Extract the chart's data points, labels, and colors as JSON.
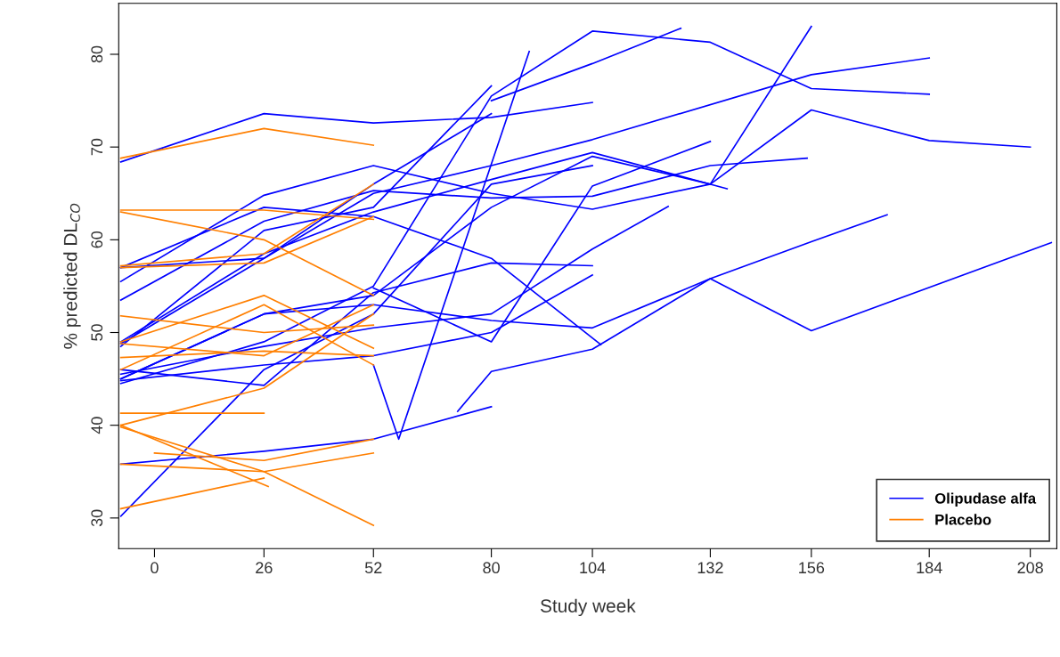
{
  "chart_data": {
    "type": "line",
    "xlabel": "Study week",
    "ylabel": "% predicted DL$_{CO}$",
    "xlim": [
      -8.5,
      214.3
    ],
    "ylim": [
      26.7,
      85.5
    ],
    "xticks": [
      0,
      26,
      52,
      80,
      104,
      132,
      156,
      184,
      208
    ],
    "yticks": [
      30,
      40,
      50,
      60,
      70,
      80
    ],
    "grid": false,
    "legend": "bottom right",
    "marker": "none",
    "line_style": "solid",
    "series": [
      {
        "name": "Olipudase alfa",
        "color": "#0000ff",
        "x": [
          -8,
          26,
          52,
          80,
          104
        ],
        "values": [
          68.4,
          73.6,
          72.6,
          73.2,
          74.8
        ]
      },
      {
        "color": "#0000ff",
        "x": [
          -8,
          26,
          52,
          80,
          104
        ],
        "values": [
          30.2,
          46,
          52,
          66,
          68
        ]
      },
      {
        "color": "#0000ff",
        "x": [
          -8,
          26,
          52,
          80,
          104,
          132,
          156,
          184,
          208
        ],
        "values": [
          55.5,
          64.8,
          68,
          65,
          63.3,
          66,
          74,
          70.7,
          70
        ]
      },
      {
        "color": "#0000ff",
        "x": [
          -8,
          26,
          52,
          80,
          104,
          132,
          156
        ],
        "values": [
          45,
          52,
          54,
          63.5,
          69,
          66,
          83
        ]
      },
      {
        "color": "#0000ff",
        "x": [
          -8,
          26,
          52,
          80,
          104,
          132,
          156,
          184
        ],
        "values": [
          44.5,
          49,
          55,
          75.5,
          82.5,
          81.3,
          76.3,
          75.7
        ]
      },
      {
        "color": "#0000ff",
        "x": [
          80,
          104,
          125
        ],
        "values": [
          75,
          79,
          82.8
        ]
      },
      {
        "color": "#0000ff",
        "x": [
          -8,
          26,
          52,
          80
        ],
        "values": [
          35.8,
          37.2,
          38.5,
          42
        ]
      },
      {
        "color": "#0000ff",
        "x": [
          -8,
          26,
          52,
          80,
          104
        ],
        "values": [
          46,
          44.3,
          54.3,
          57.5,
          57.2
        ]
      },
      {
        "color": "#0000ff",
        "x": [
          72,
          80,
          104,
          132,
          156,
          213
        ],
        "values": [
          41.5,
          45.8,
          48.2,
          55.8,
          50.2,
          59.7
        ]
      },
      {
        "color": "#0000ff",
        "x": [
          -8,
          26,
          52,
          80,
          104,
          132,
          155
        ],
        "values": [
          53.5,
          62,
          65.3,
          64.5,
          64.7,
          68,
          68.8
        ]
      },
      {
        "color": "#0000ff",
        "x": [
          -8,
          26,
          52,
          80,
          104,
          156,
          184
        ],
        "values": [
          57,
          58,
          65,
          68,
          70.8,
          77.8,
          79.6
        ]
      },
      {
        "color": "#0000ff",
        "x": [
          52,
          58,
          89
        ],
        "values": [
          46.5,
          38.5,
          80.3
        ]
      },
      {
        "color": "#0000ff",
        "x": [
          -8,
          26,
          52,
          80
        ],
        "values": [
          48.8,
          58,
          66,
          73.6
        ]
      },
      {
        "color": "#0000ff",
        "x": [
          -8,
          26,
          52,
          80
        ],
        "values": [
          48.5,
          61,
          63.5,
          76.6
        ]
      },
      {
        "color": "#0000ff",
        "x": [
          -8,
          26,
          52,
          80,
          106
        ],
        "values": [
          57,
          63.5,
          62.5,
          58,
          48.7
        ]
      },
      {
        "color": "#0000ff",
        "x": [
          -8,
          26,
          52,
          80,
          104,
          132,
          156,
          174
        ],
        "values": [
          45,
          52,
          53,
          51.3,
          50.5,
          55.8,
          59.8,
          62.7
        ]
      },
      {
        "color": "#0000ff",
        "x": [
          -8,
          26,
          52,
          80,
          104,
          136
        ],
        "values": [
          49,
          58.5,
          63,
          66.5,
          69.4,
          65.5
        ]
      },
      {
        "color": "#0000ff",
        "x": [
          52,
          80,
          104,
          132
        ],
        "values": [
          54.8,
          49,
          65.8,
          70.6
        ]
      },
      {
        "color": "#0000ff",
        "x": [
          -8,
          26,
          52,
          80,
          104,
          122
        ],
        "values": [
          45.5,
          48.5,
          50.5,
          52,
          59,
          63.6
        ]
      },
      {
        "color": "#0000ff",
        "x": [
          -8,
          26,
          52,
          80,
          104
        ],
        "values": [
          44.8,
          46.5,
          47.5,
          50,
          56.2
        ]
      },
      {
        "name": "Placebo",
        "color": "#ff7f00",
        "x": [
          -8,
          26,
          52
        ],
        "values": [
          68.8,
          72,
          70.2
        ]
      },
      {
        "color": "#ff7f00",
        "x": [
          -8,
          26,
          52
        ],
        "values": [
          63.2,
          63.2,
          62.2
        ]
      },
      {
        "color": "#ff7f00",
        "x": [
          -8,
          26,
          52
        ],
        "values": [
          63,
          60,
          54
        ]
      },
      {
        "color": "#ff7f00",
        "x": [
          -8,
          26,
          52
        ],
        "values": [
          57.2,
          58.5,
          66
        ]
      },
      {
        "color": "#ff7f00",
        "x": [
          -8,
          26,
          52
        ],
        "values": [
          57,
          57.5,
          62.5
        ]
      },
      {
        "color": "#ff7f00",
        "x": [
          -8,
          26,
          52
        ],
        "values": [
          51.8,
          50,
          50.8
        ]
      },
      {
        "color": "#ff7f00",
        "x": [
          -8,
          26,
          52
        ],
        "values": [
          49,
          54,
          48.3
        ]
      },
      {
        "color": "#ff7f00",
        "x": [
          -8,
          26,
          52
        ],
        "values": [
          48.8,
          47.5,
          53
        ]
      },
      {
        "color": "#ff7f00",
        "x": [
          -8,
          26,
          52
        ],
        "values": [
          47.3,
          48,
          47.5
        ]
      },
      {
        "color": "#ff7f00",
        "x": [
          -8,
          26,
          52
        ],
        "values": [
          46,
          53,
          46.5
        ]
      },
      {
        "color": "#ff7f00",
        "x": [
          -8,
          26
        ],
        "values": [
          41.3,
          41.3
        ]
      },
      {
        "color": "#ff7f00",
        "x": [
          -8,
          26,
          52
        ],
        "values": [
          40,
          44,
          52
        ]
      },
      {
        "color": "#ff7f00",
        "x": [
          -8,
          26,
          52
        ],
        "values": [
          39.8,
          35,
          29.2
        ]
      },
      {
        "color": "#ff7f00",
        "x": [
          -8,
          26,
          52
        ],
        "values": [
          35.8,
          35,
          37
        ]
      },
      {
        "color": "#ff7f00",
        "x": [
          0,
          26,
          52
        ],
        "values": [
          37,
          36.2,
          38.5
        ]
      },
      {
        "color": "#ff7f00",
        "x": [
          -8,
          26
        ],
        "values": [
          31,
          34.3
        ]
      },
      {
        "color": "#ff7f00",
        "x": [
          -8,
          27
        ],
        "values": [
          40,
          33.4
        ]
      }
    ]
  }
}
